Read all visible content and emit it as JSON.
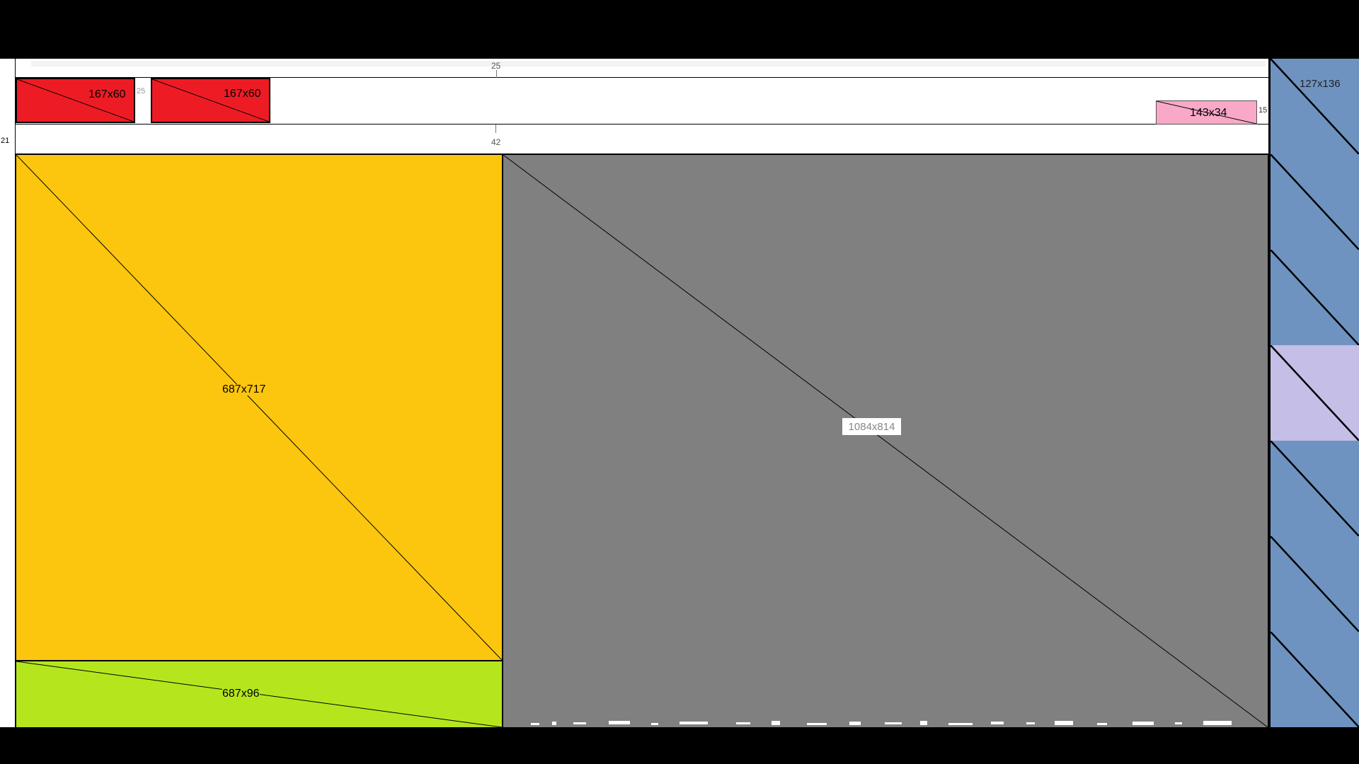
{
  "ruler": {
    "top_value": "25",
    "mid_value": "42",
    "left_value": "21",
    "gap_value": "25",
    "right_gap_value": "15"
  },
  "blocks": {
    "red_1": {
      "label": "167x60",
      "color": "#ed1c24"
    },
    "red_2": {
      "label": "167x60",
      "color": "#ed1c24"
    },
    "pink": {
      "label": "143x34",
      "color": "#f9a8c8"
    },
    "yellow": {
      "label": "687x717",
      "color": "#fcc60e"
    },
    "green": {
      "label": "687x96",
      "color": "#b5e61d"
    },
    "gray": {
      "label": "1084x814",
      "color": "#808080"
    }
  },
  "right_column": {
    "top_label": "127x136",
    "tiles": [
      {
        "color": "#6f93c1"
      },
      {
        "color": "#6f93c1"
      },
      {
        "color": "#6f93c1"
      },
      {
        "color": "#c5bee6"
      },
      {
        "color": "#6f93c1"
      },
      {
        "color": "#6f93c1"
      },
      {
        "color": "#6f93c1"
      }
    ]
  }
}
